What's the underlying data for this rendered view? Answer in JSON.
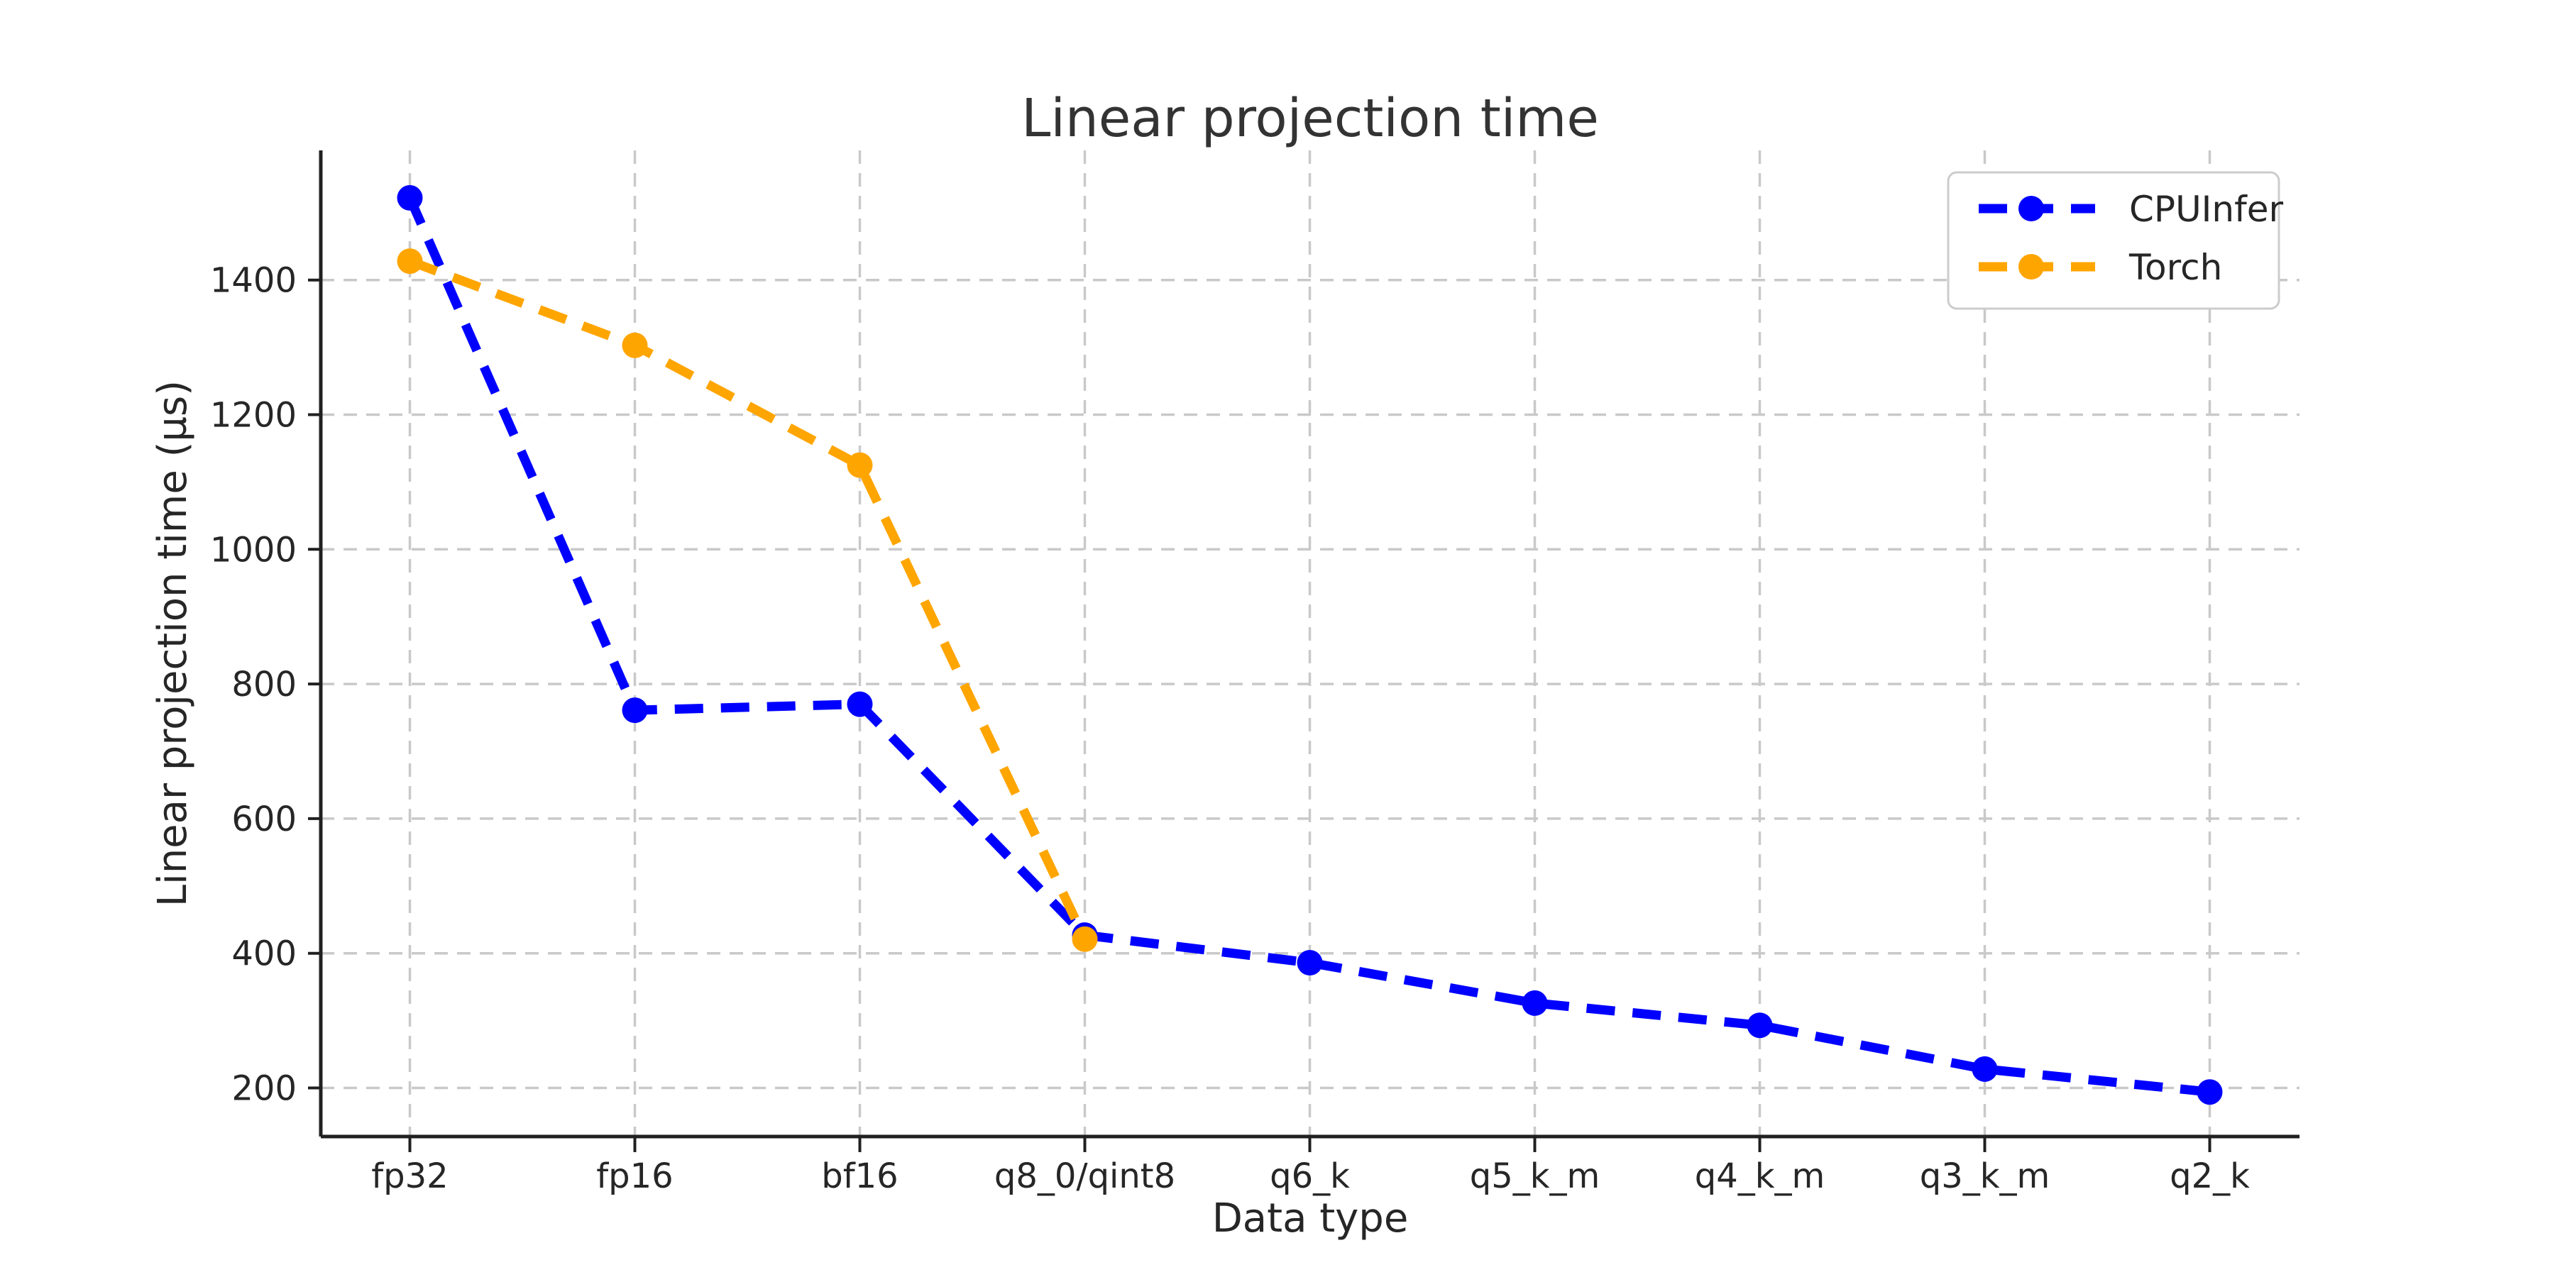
{
  "figure": {
    "title": "Linear projection time",
    "background_color": "#ffffff"
  },
  "chart_data": {
    "type": "line",
    "title": "Linear projection time",
    "xlabel": "Data type",
    "ylabel": "Linear projection time (µs)",
    "categories": [
      "fp32",
      "fp16",
      "bf16",
      "q8_0/qint8",
      "q6_k",
      "q5_k_m",
      "q4_k_m",
      "q3_k_m",
      "q2_k"
    ],
    "series": [
      {
        "name": "CPUInfer",
        "color": "#0000ff",
        "values": [
          1522,
          761,
          770,
          427,
          386,
          326,
          293,
          228,
          194
        ]
      },
      {
        "name": "Torch",
        "color": "#ffa500",
        "values": [
          1428,
          1303,
          1125,
          421
        ]
      }
    ],
    "y_ticks": [
      200,
      400,
      600,
      800,
      1000,
      1200,
      1400
    ],
    "y_tick_labels": [
      "200",
      "400",
      "600",
      "800",
      "1000",
      "1200",
      "1400"
    ],
    "ylim": [
      128,
      1593
    ],
    "grid": true,
    "grid_line_style": "dashed",
    "series_line_style": "dashed",
    "marker": "circle",
    "legend_position": "upper right",
    "legend_entries": [
      "CPUInfer",
      "Torch"
    ]
  },
  "style": {
    "grid_color": "#c9c9c9",
    "spine_color": "#202020",
    "tick_color": "#202020",
    "text_color": "#262626",
    "title_color": "#333333",
    "legend_border_color": "#cccccc",
    "legend_background": "#ffffff"
  }
}
